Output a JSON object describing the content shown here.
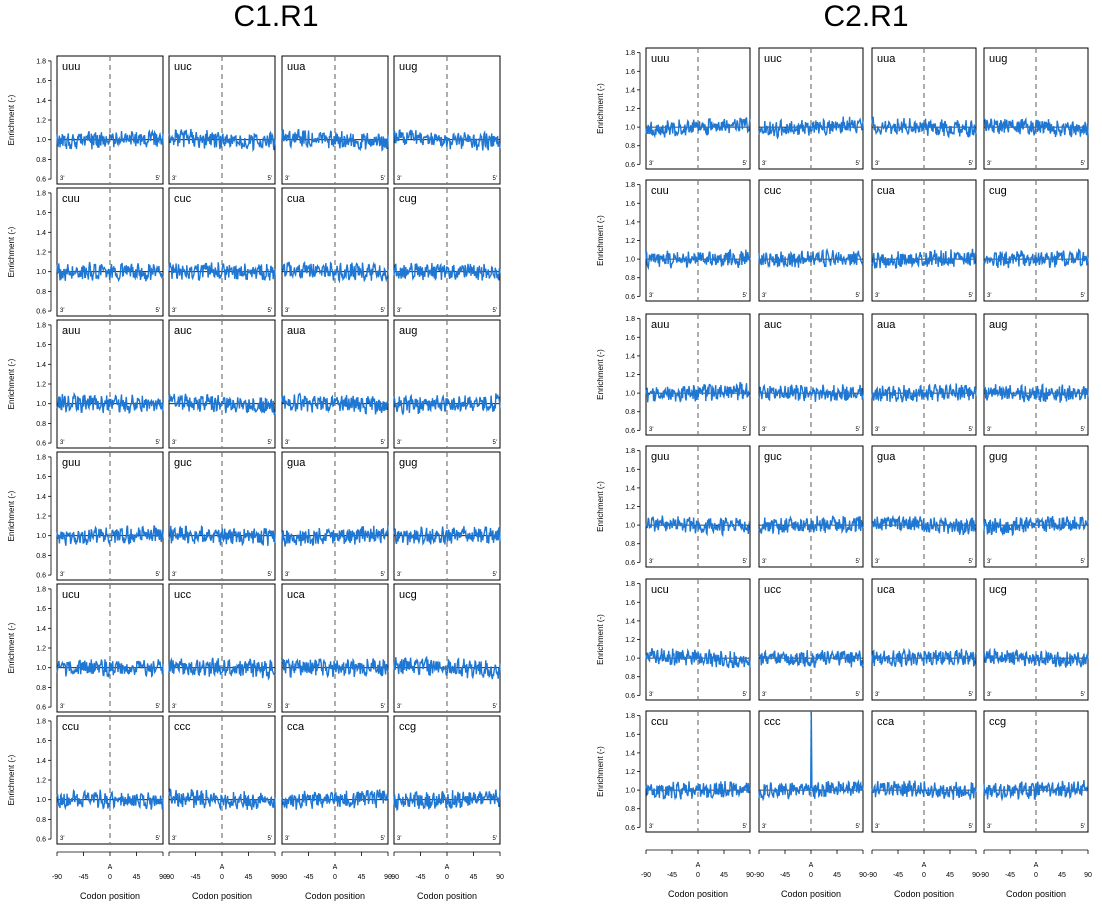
{
  "chart_data": [
    {
      "type": "line",
      "title": "C1.R1",
      "codons": [
        "uuu",
        "uuc",
        "uua",
        "uug",
        "cuu",
        "cuc",
        "cua",
        "cug",
        "auu",
        "auc",
        "aua",
        "aug",
        "guu",
        "guc",
        "gua",
        "gug",
        "ucu",
        "ucc",
        "uca",
        "ucg",
        "ccu",
        "ccc",
        "cca",
        "ccg"
      ],
      "grid": [
        6,
        4
      ],
      "ylabel": "Enrichment (-)",
      "yticks": [
        "0.6",
        "0.8",
        "1.0",
        "1.2",
        "1.4",
        "1.6",
        "1.8"
      ],
      "ylim": [
        0.55,
        1.85
      ],
      "reference_line_y": 1.0,
      "xlabel": "Codon position",
      "xticks": [
        "-90",
        "-45",
        "0",
        "45",
        "90"
      ],
      "xlim": [
        -90,
        90
      ],
      "a_site_label": "A",
      "a_site_x": 0,
      "end_labels": {
        "left": "3'",
        "right": "5'"
      },
      "series_color": "#1f77d4",
      "y_range_by_codon": {
        "uuu": [
          0.9,
          1.22
        ],
        "uuc": [
          0.88,
          1.2
        ],
        "uua": [
          0.85,
          1.15
        ],
        "uug": [
          0.82,
          1.12
        ],
        "cuu": [
          0.88,
          1.25
        ],
        "cuc": [
          0.87,
          1.15
        ],
        "cua": [
          0.85,
          1.22
        ],
        "cug": [
          0.85,
          1.15
        ],
        "auu": [
          0.85,
          1.22
        ],
        "auc": [
          0.82,
          1.1
        ],
        "aua": [
          0.85,
          1.12
        ],
        "aug": [
          0.85,
          1.12
        ],
        "guu": [
          0.88,
          1.18
        ],
        "guc": [
          0.85,
          1.22
        ],
        "gua": [
          0.85,
          1.15
        ],
        "gug": [
          0.82,
          1.18
        ],
        "ucu": [
          0.88,
          1.18
        ],
        "ucc": [
          0.82,
          1.2
        ],
        "uca": [
          0.88,
          1.28
        ],
        "ucg": [
          0.82,
          1.15
        ],
        "ccu": [
          0.88,
          1.28
        ],
        "ccc": [
          0.82,
          1.22
        ],
        "cca": [
          0.88,
          1.2
        ],
        "ccg": [
          0.85,
          1.25
        ]
      }
    },
    {
      "type": "line",
      "title": "C2.R1",
      "codons": [
        "uuu",
        "uuc",
        "uua",
        "uug",
        "cuu",
        "cuc",
        "cua",
        "cug",
        "auu",
        "auc",
        "aua",
        "aug",
        "guu",
        "guc",
        "gua",
        "gug",
        "ucu",
        "ucc",
        "uca",
        "ucg",
        "ccu",
        "ccc",
        "cca",
        "ccg"
      ],
      "grid": [
        6,
        4
      ],
      "ylabel": "Enrichment (-)",
      "yticks": [
        "0.6",
        "0.8",
        "1.0",
        "1.2",
        "1.4",
        "1.6",
        "1.8"
      ],
      "ylim": [
        0.55,
        1.85
      ],
      "reference_line_y": 1.0,
      "xlabel": "Codon position",
      "xticks": [
        "-90",
        "-45",
        "0",
        "45",
        "90"
      ],
      "xlim": [
        -90,
        90
      ],
      "a_site_label": "A",
      "a_site_x": 0,
      "end_labels": {
        "left": "3'",
        "right": "5'"
      },
      "series_color": "#1f77d4",
      "y_range_by_codon": {
        "uuu": [
          0.85,
          1.2
        ],
        "uuc": [
          0.88,
          1.18
        ],
        "uua": [
          0.85,
          1.15
        ],
        "uug": [
          0.85,
          1.22
        ],
        "cuu": [
          0.88,
          1.25
        ],
        "cuc": [
          0.85,
          1.15
        ],
        "cua": [
          0.85,
          1.22
        ],
        "cug": [
          0.85,
          1.18
        ],
        "auu": [
          0.85,
          1.18
        ],
        "auc": [
          0.82,
          1.12
        ],
        "aua": [
          0.82,
          1.15
        ],
        "aug": [
          0.85,
          1.18
        ],
        "guu": [
          0.85,
          1.18
        ],
        "guc": [
          0.82,
          1.32
        ],
        "gua": [
          0.85,
          1.15
        ],
        "gug": [
          0.85,
          1.2
        ],
        "ucu": [
          0.88,
          1.2
        ],
        "ucc": [
          0.82,
          1.15
        ],
        "uca": [
          0.88,
          1.2
        ],
        "ucg": [
          0.85,
          1.18
        ],
        "ccu": [
          0.88,
          1.22
        ],
        "ccc": [
          0.85,
          1.85
        ],
        "cca": [
          0.88,
          1.18
        ],
        "ccg": [
          0.85,
          1.22
        ]
      },
      "peak": {
        "codon": "ccc",
        "x": 0,
        "y": 1.85
      }
    }
  ]
}
